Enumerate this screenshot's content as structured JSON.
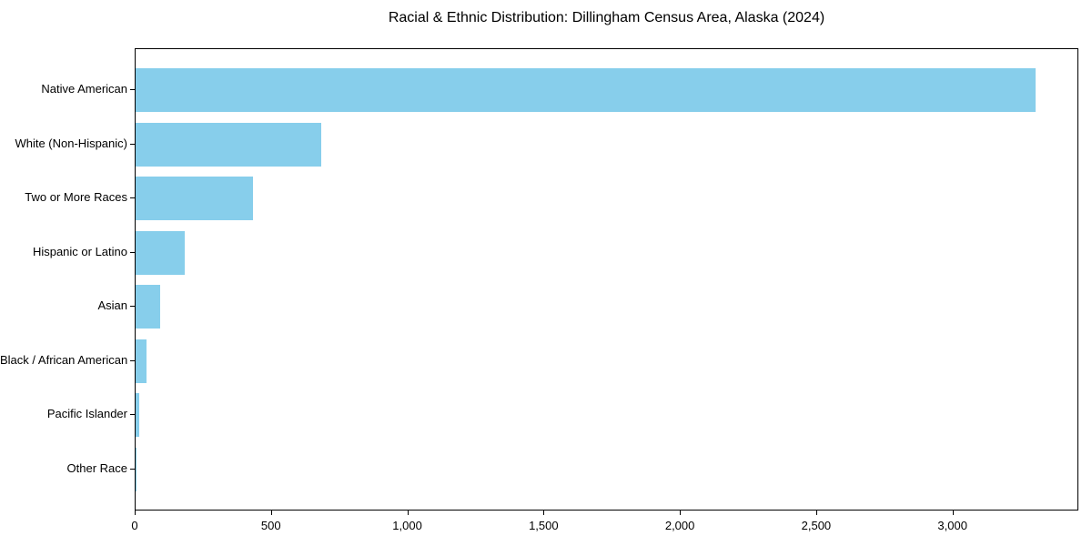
{
  "chart_data": {
    "type": "bar",
    "orientation": "horizontal",
    "title": "Racial & Ethnic Distribution: Dillingham Census Area, Alaska (2024)",
    "categories": [
      "Native American",
      "White (Non-Hispanic)",
      "Two or More Races",
      "Hispanic or Latino",
      "Asian",
      "Black / African American",
      "Pacific Islander",
      "Other Race"
    ],
    "values": [
      3300,
      680,
      430,
      180,
      90,
      40,
      15,
      2
    ],
    "xlabel": "",
    "ylabel": "",
    "xlim": [
      0,
      3455
    ],
    "x_ticks": [
      0,
      500,
      1000,
      1500,
      2000,
      2500,
      3000
    ],
    "x_tick_labels": [
      "0",
      "500",
      "1,000",
      "1,500",
      "2,000",
      "2,500",
      "3,000"
    ],
    "bar_color": "#87CEEB",
    "background_color": "#ffffff",
    "axis_color": "#000000",
    "grid": false,
    "legend": null,
    "largest_bar_label": "Native American",
    "largest_bar_value": 3300
  }
}
